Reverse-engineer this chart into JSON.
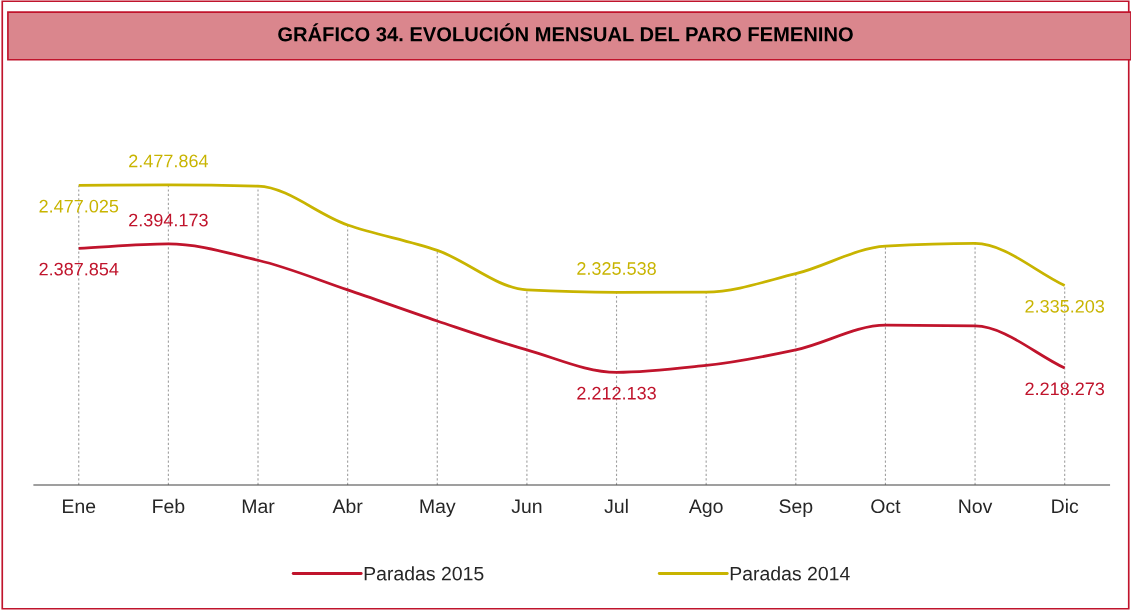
{
  "chart_data": {
    "type": "line",
    "title": "GRÁFICO 34. EVOLUCIÓN MENSUAL DEL PARO FEMENINO",
    "categories": [
      "Ene",
      "Feb",
      "Mar",
      "Abr",
      "May",
      "Jun",
      "Jul",
      "Ago",
      "Sep",
      "Oct",
      "Nov",
      "Dic"
    ],
    "series": [
      {
        "name": "Paradas 2015",
        "color": "#c0142c",
        "values": [
          2387854,
          2394173,
          2371000,
          2329000,
          2285000,
          2244000,
          2212133,
          2222000,
          2244000,
          2279000,
          2278000,
          2218273
        ],
        "value_labels": [
          "2.387.854",
          "2.394.173",
          null,
          null,
          null,
          null,
          "2.212.133",
          null,
          null,
          null,
          null,
          "2.218.273"
        ]
      },
      {
        "name": "Paradas 2014",
        "color": "#c8b400",
        "values": [
          2477025,
          2477864,
          2476000,
          2421000,
          2385000,
          2329000,
          2325538,
          2326000,
          2352000,
          2391000,
          2395000,
          2335203
        ],
        "value_labels": [
          "2.477.025",
          "2.477.864",
          null,
          null,
          null,
          null,
          "2.325.538",
          null,
          null,
          null,
          null,
          "2.335.203"
        ]
      }
    ],
    "grid": "x",
    "legend": "bottom",
    "tick_labels": "x"
  }
}
